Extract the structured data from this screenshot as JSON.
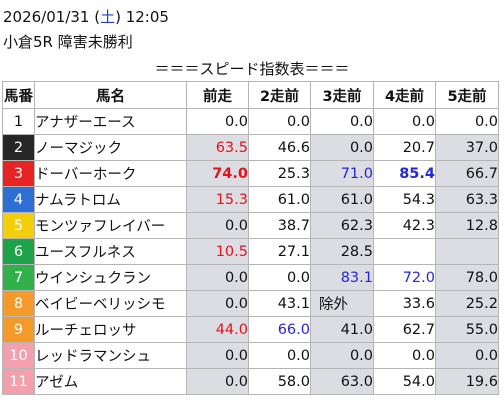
{
  "header": {
    "datetime_pre": "2026/01/31 (",
    "weekday": "土",
    "datetime_post": ") 12:05",
    "race": "小倉5R 障害未勝利"
  },
  "title": "＝＝＝スピード指数表＝＝＝",
  "columns": [
    "馬番",
    "馬名",
    "前走",
    "2走前",
    "3走前",
    "4走前",
    "5走前"
  ],
  "colors": {
    "red": "#e0141e",
    "blue": "#2528d8",
    "stripe": "#dcdde2",
    "saturday": "#1f3fd8"
  },
  "rows": [
    {
      "num": "1",
      "bg": "#ffffff",
      "fg": "#111111",
      "name": "アナザーエース",
      "cells": [
        {
          "v": "0.0",
          "c": "",
          "b": false
        },
        {
          "v": "0.0",
          "c": "",
          "b": false
        },
        {
          "v": "0.0",
          "c": "",
          "b": false
        },
        {
          "v": "0.0",
          "c": "",
          "b": false
        },
        {
          "v": "0.0",
          "c": "",
          "b": false
        }
      ]
    },
    {
      "num": "2",
      "bg": "#262626",
      "fg": "#ffffff",
      "name": "ノーマジック",
      "cells": [
        {
          "v": "63.5",
          "c": "red",
          "b": false
        },
        {
          "v": "46.6",
          "c": "",
          "b": false
        },
        {
          "v": "0.0",
          "c": "",
          "b": false
        },
        {
          "v": "20.7",
          "c": "",
          "b": false
        },
        {
          "v": "37.0",
          "c": "",
          "b": false
        }
      ]
    },
    {
      "num": "3",
      "bg": "#e62424",
      "fg": "#ffffff",
      "name": "ドーバーホーク",
      "cells": [
        {
          "v": "74.0",
          "c": "red",
          "b": true
        },
        {
          "v": "25.3",
          "c": "",
          "b": false
        },
        {
          "v": "71.0",
          "c": "blue",
          "b": false
        },
        {
          "v": "85.4",
          "c": "blue",
          "b": true
        },
        {
          "v": "66.7",
          "c": "",
          "b": false
        }
      ]
    },
    {
      "num": "4",
      "bg": "#2e6fd6",
      "fg": "#ffffff",
      "name": "ナムラトロム",
      "cells": [
        {
          "v": "15.3",
          "c": "red",
          "b": false
        },
        {
          "v": "61.0",
          "c": "",
          "b": false
        },
        {
          "v": "61.0",
          "c": "",
          "b": false
        },
        {
          "v": "54.3",
          "c": "",
          "b": false
        },
        {
          "v": "63.3",
          "c": "",
          "b": false
        }
      ]
    },
    {
      "num": "5",
      "bg": "#f2cf0a",
      "fg": "#ffffff",
      "name": "モンツァフレイバー",
      "cells": [
        {
          "v": "0.0",
          "c": "",
          "b": false
        },
        {
          "v": "38.7",
          "c": "",
          "b": false
        },
        {
          "v": "62.3",
          "c": "",
          "b": false
        },
        {
          "v": "42.3",
          "c": "",
          "b": false
        },
        {
          "v": "12.8",
          "c": "",
          "b": false
        }
      ]
    },
    {
      "num": "6",
      "bg": "#1fa34a",
      "fg": "#ffffff",
      "name": "ユースフルネス",
      "cells": [
        {
          "v": "10.5",
          "c": "red",
          "b": false
        },
        {
          "v": "27.1",
          "c": "",
          "b": false
        },
        {
          "v": "28.5",
          "c": "",
          "b": false
        },
        {
          "v": "",
          "c": "",
          "b": false
        },
        {
          "v": "",
          "c": "",
          "b": false
        }
      ]
    },
    {
      "num": "7",
      "bg": "#32b14a",
      "fg": "#ffffff",
      "name": "ウインシュクラン",
      "cells": [
        {
          "v": "0.0",
          "c": "",
          "b": false
        },
        {
          "v": "0.0",
          "c": "",
          "b": false
        },
        {
          "v": "83.1",
          "c": "blue",
          "b": false
        },
        {
          "v": "72.0",
          "c": "blue",
          "b": false
        },
        {
          "v": "78.0",
          "c": "",
          "b": false
        }
      ]
    },
    {
      "num": "8",
      "bg": "#f39a2a",
      "fg": "#ffffff",
      "name": "ベイビーベリッシモ",
      "cells": [
        {
          "v": "0.0",
          "c": "",
          "b": false
        },
        {
          "v": "43.1",
          "c": "",
          "b": false
        },
        {
          "v": "除外",
          "c": "",
          "b": false
        },
        {
          "v": "33.6",
          "c": "",
          "b": false
        },
        {
          "v": "25.2",
          "c": "",
          "b": false
        }
      ]
    },
    {
      "num": "9",
      "bg": "#f39a2a",
      "fg": "#ffffff",
      "name": "ルーチェロッサ",
      "cells": [
        {
          "v": "44.0",
          "c": "red",
          "b": false
        },
        {
          "v": "66.0",
          "c": "blue",
          "b": false
        },
        {
          "v": "41.0",
          "c": "",
          "b": false
        },
        {
          "v": "62.7",
          "c": "",
          "b": false
        },
        {
          "v": "55.0",
          "c": "",
          "b": false
        }
      ]
    },
    {
      "num": "10",
      "bg": "#f2a0ae",
      "fg": "#ffffff",
      "name": "レッドラマンシュ",
      "cells": [
        {
          "v": "0.0",
          "c": "",
          "b": false
        },
        {
          "v": "0.0",
          "c": "",
          "b": false
        },
        {
          "v": "0.0",
          "c": "",
          "b": false
        },
        {
          "v": "0.0",
          "c": "",
          "b": false
        },
        {
          "v": "0.0",
          "c": "",
          "b": false
        }
      ]
    },
    {
      "num": "11",
      "bg": "#f2a0ae",
      "fg": "#ffffff",
      "name": "アゼム",
      "cells": [
        {
          "v": "0.0",
          "c": "",
          "b": false
        },
        {
          "v": "58.0",
          "c": "",
          "b": false
        },
        {
          "v": "63.0",
          "c": "",
          "b": false
        },
        {
          "v": "54.0",
          "c": "",
          "b": false
        },
        {
          "v": "19.6",
          "c": "",
          "b": false
        }
      ]
    }
  ]
}
